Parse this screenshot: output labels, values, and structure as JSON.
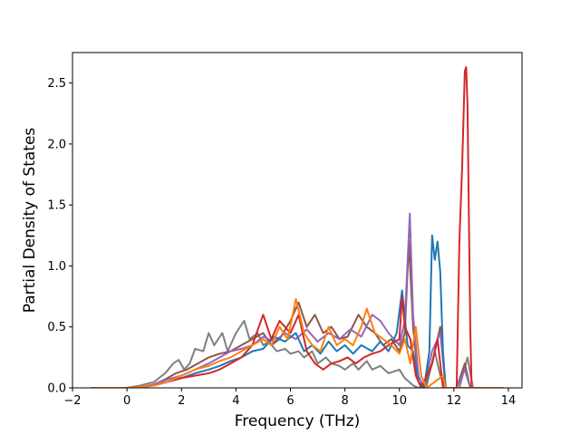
{
  "chart_data": {
    "type": "line",
    "title": "",
    "xlabel": "Frequency (THz)",
    "ylabel": "Partial Density of States",
    "xlim": [
      -2,
      14.5
    ],
    "ylim": [
      0,
      2.75
    ],
    "xticks": [
      -2,
      0,
      2,
      4,
      6,
      8,
      10,
      12,
      14
    ],
    "yticks": [
      0.0,
      0.5,
      1.0,
      1.5,
      2.0,
      2.5
    ],
    "xtick_labels": [
      "−2",
      "0",
      "2",
      "4",
      "6",
      "8",
      "10",
      "12",
      "14"
    ],
    "ytick_labels": [
      "0.0",
      "0.5",
      "1.0",
      "1.5",
      "2.0",
      "2.5"
    ],
    "grid": false,
    "legend": "none",
    "series": [
      {
        "color": "#7f7f7f",
        "points": [
          [
            -1.3,
            0
          ],
          [
            0,
            0
          ],
          [
            0.5,
            0.02
          ],
          [
            1,
            0.05
          ],
          [
            1.4,
            0.12
          ],
          [
            1.7,
            0.2
          ],
          [
            1.9,
            0.23
          ],
          [
            2.1,
            0.15
          ],
          [
            2.3,
            0.2
          ],
          [
            2.5,
            0.32
          ],
          [
            2.8,
            0.3
          ],
          [
            3,
            0.45
          ],
          [
            3.2,
            0.35
          ],
          [
            3.5,
            0.45
          ],
          [
            3.7,
            0.3
          ],
          [
            4,
            0.45
          ],
          [
            4.3,
            0.55
          ],
          [
            4.5,
            0.4
          ],
          [
            4.8,
            0.45
          ],
          [
            5,
            0.35
          ],
          [
            5.2,
            0.38
          ],
          [
            5.5,
            0.3
          ],
          [
            5.8,
            0.32
          ],
          [
            6,
            0.28
          ],
          [
            6.3,
            0.3
          ],
          [
            6.5,
            0.25
          ],
          [
            6.8,
            0.3
          ],
          [
            7,
            0.2
          ],
          [
            7.3,
            0.25
          ],
          [
            7.5,
            0.2
          ],
          [
            7.8,
            0.18
          ],
          [
            8,
            0.15
          ],
          [
            8.3,
            0.2
          ],
          [
            8.5,
            0.15
          ],
          [
            8.8,
            0.22
          ],
          [
            9,
            0.15
          ],
          [
            9.3,
            0.18
          ],
          [
            9.6,
            0.12
          ],
          [
            10,
            0.15
          ],
          [
            10.2,
            0.08
          ],
          [
            10.5,
            0.02
          ],
          [
            10.7,
            0
          ],
          [
            11,
            0.02
          ],
          [
            11.3,
            0.3
          ],
          [
            11.5,
            0.1
          ],
          [
            11.7,
            0
          ],
          [
            12.2,
            0
          ],
          [
            12.5,
            0.25
          ],
          [
            12.7,
            0
          ],
          [
            13.8,
            0
          ]
        ]
      },
      {
        "color": "#8c564b",
        "points": [
          [
            -1.3,
            0
          ],
          [
            0,
            0
          ],
          [
            0.6,
            0.01
          ],
          [
            1,
            0.03
          ],
          [
            1.4,
            0.07
          ],
          [
            1.8,
            0.12
          ],
          [
            2.2,
            0.15
          ],
          [
            2.6,
            0.2
          ],
          [
            3,
            0.25
          ],
          [
            3.4,
            0.28
          ],
          [
            3.8,
            0.3
          ],
          [
            4.2,
            0.35
          ],
          [
            4.6,
            0.4
          ],
          [
            5,
            0.45
          ],
          [
            5.3,
            0.35
          ],
          [
            5.6,
            0.4
          ],
          [
            6,
            0.55
          ],
          [
            6.3,
            0.7
          ],
          [
            6.6,
            0.5
          ],
          [
            6.9,
            0.6
          ],
          [
            7.2,
            0.45
          ],
          [
            7.5,
            0.5
          ],
          [
            7.8,
            0.4
          ],
          [
            8.1,
            0.42
          ],
          [
            8.5,
            0.6
          ],
          [
            8.8,
            0.5
          ],
          [
            9.1,
            0.45
          ],
          [
            9.4,
            0.35
          ],
          [
            9.7,
            0.4
          ],
          [
            10,
            0.3
          ],
          [
            10.2,
            0.45
          ],
          [
            10.35,
            1.2
          ],
          [
            10.5,
            0.5
          ],
          [
            10.7,
            0.05
          ],
          [
            10.9,
            0
          ],
          [
            11.2,
            0.2
          ],
          [
            11.5,
            0.5
          ],
          [
            11.7,
            0
          ],
          [
            12.1,
            0
          ],
          [
            12.4,
            0.2
          ],
          [
            12.6,
            0
          ],
          [
            13.8,
            0
          ]
        ]
      },
      {
        "color": "#9467bd",
        "points": [
          [
            -1.3,
            0
          ],
          [
            0,
            0
          ],
          [
            0.6,
            0.01
          ],
          [
            1,
            0.03
          ],
          [
            1.5,
            0.07
          ],
          [
            2,
            0.1
          ],
          [
            2.5,
            0.15
          ],
          [
            3,
            0.2
          ],
          [
            3.4,
            0.25
          ],
          [
            3.8,
            0.3
          ],
          [
            4.2,
            0.32
          ],
          [
            4.6,
            0.35
          ],
          [
            5,
            0.42
          ],
          [
            5.4,
            0.38
          ],
          [
            5.8,
            0.45
          ],
          [
            6.2,
            0.4
          ],
          [
            6.6,
            0.48
          ],
          [
            7,
            0.38
          ],
          [
            7.4,
            0.45
          ],
          [
            7.8,
            0.4
          ],
          [
            8.2,
            0.48
          ],
          [
            8.6,
            0.42
          ],
          [
            9,
            0.6
          ],
          [
            9.3,
            0.55
          ],
          [
            9.6,
            0.45
          ],
          [
            10,
            0.35
          ],
          [
            10.2,
            0.55
          ],
          [
            10.38,
            1.43
          ],
          [
            10.5,
            0.6
          ],
          [
            10.7,
            0.1
          ],
          [
            10.9,
            0
          ],
          [
            11.2,
            0.3
          ],
          [
            11.5,
            0.45
          ],
          [
            11.7,
            0
          ],
          [
            12.1,
            0
          ],
          [
            12.4,
            0.15
          ],
          [
            12.6,
            0
          ],
          [
            13.8,
            0
          ]
        ]
      },
      {
        "color": "#1f77b4",
        "points": [
          [
            -1.3,
            0
          ],
          [
            0,
            0
          ],
          [
            0.6,
            0.01
          ],
          [
            1,
            0.02
          ],
          [
            1.5,
            0.05
          ],
          [
            2,
            0.08
          ],
          [
            2.5,
            0.12
          ],
          [
            3,
            0.15
          ],
          [
            3.4,
            0.18
          ],
          [
            3.8,
            0.22
          ],
          [
            4.2,
            0.25
          ],
          [
            4.6,
            0.3
          ],
          [
            5,
            0.32
          ],
          [
            5.4,
            0.42
          ],
          [
            5.8,
            0.38
          ],
          [
            6.2,
            0.45
          ],
          [
            6.5,
            0.3
          ],
          [
            6.8,
            0.35
          ],
          [
            7.1,
            0.28
          ],
          [
            7.4,
            0.38
          ],
          [
            7.7,
            0.3
          ],
          [
            8,
            0.35
          ],
          [
            8.3,
            0.28
          ],
          [
            8.6,
            0.35
          ],
          [
            9,
            0.3
          ],
          [
            9.3,
            0.38
          ],
          [
            9.6,
            0.3
          ],
          [
            9.9,
            0.45
          ],
          [
            10.1,
            0.8
          ],
          [
            10.3,
            0.35
          ],
          [
            10.5,
            0.3
          ],
          [
            10.7,
            0.05
          ],
          [
            10.9,
            0
          ],
          [
            11.1,
            0.3
          ],
          [
            11.2,
            1.25
          ],
          [
            11.3,
            1.05
          ],
          [
            11.4,
            1.2
          ],
          [
            11.5,
            0.95
          ],
          [
            11.6,
            0.3
          ],
          [
            11.7,
            0
          ],
          [
            13.8,
            0
          ]
        ]
      },
      {
        "color": "#d62728",
        "points": [
          [
            -1.3,
            0
          ],
          [
            0,
            0
          ],
          [
            0.6,
            0.01
          ],
          [
            1,
            0.02
          ],
          [
            1.5,
            0.05
          ],
          [
            2,
            0.08
          ],
          [
            2.5,
            0.1
          ],
          [
            3,
            0.12
          ],
          [
            3.4,
            0.15
          ],
          [
            3.8,
            0.2
          ],
          [
            4.2,
            0.25
          ],
          [
            4.6,
            0.35
          ],
          [
            5,
            0.6
          ],
          [
            5.3,
            0.4
          ],
          [
            5.6,
            0.55
          ],
          [
            6,
            0.45
          ],
          [
            6.3,
            0.6
          ],
          [
            6.6,
            0.3
          ],
          [
            6.9,
            0.2
          ],
          [
            7.2,
            0.15
          ],
          [
            7.5,
            0.2
          ],
          [
            7.8,
            0.22
          ],
          [
            8.1,
            0.25
          ],
          [
            8.4,
            0.2
          ],
          [
            8.7,
            0.25
          ],
          [
            9,
            0.28
          ],
          [
            9.3,
            0.3
          ],
          [
            9.6,
            0.35
          ],
          [
            10,
            0.4
          ],
          [
            10.1,
            0.75
          ],
          [
            10.2,
            0.5
          ],
          [
            10.4,
            0.4
          ],
          [
            10.6,
            0.1
          ],
          [
            10.8,
            0
          ],
          [
            11.2,
            0.2
          ],
          [
            11.4,
            0.4
          ],
          [
            11.6,
            0
          ],
          [
            12.1,
            0
          ],
          [
            12.2,
            1.2
          ],
          [
            12.3,
            1.8
          ],
          [
            12.4,
            2.6
          ],
          [
            12.45,
            2.63
          ],
          [
            12.5,
            2.3
          ],
          [
            12.6,
            0.5
          ],
          [
            12.65,
            0
          ],
          [
            13.8,
            0
          ]
        ]
      },
      {
        "color": "#ff7f0e",
        "points": [
          [
            -1.3,
            0
          ],
          [
            0,
            0
          ],
          [
            0.6,
            0.01
          ],
          [
            1,
            0.02
          ],
          [
            1.5,
            0.05
          ],
          [
            2,
            0.1
          ],
          [
            2.5,
            0.15
          ],
          [
            3,
            0.18
          ],
          [
            3.4,
            0.22
          ],
          [
            3.8,
            0.25
          ],
          [
            4.2,
            0.3
          ],
          [
            4.6,
            0.35
          ],
          [
            5,
            0.4
          ],
          [
            5.3,
            0.35
          ],
          [
            5.6,
            0.5
          ],
          [
            5.9,
            0.4
          ],
          [
            6.2,
            0.73
          ],
          [
            6.5,
            0.45
          ],
          [
            6.8,
            0.35
          ],
          [
            7.1,
            0.3
          ],
          [
            7.4,
            0.5
          ],
          [
            7.7,
            0.35
          ],
          [
            8,
            0.4
          ],
          [
            8.3,
            0.35
          ],
          [
            8.6,
            0.5
          ],
          [
            8.8,
            0.65
          ],
          [
            9.1,
            0.45
          ],
          [
            9.4,
            0.4
          ],
          [
            9.7,
            0.35
          ],
          [
            10,
            0.28
          ],
          [
            10.2,
            0.4
          ],
          [
            10.4,
            0.2
          ],
          [
            10.6,
            0.5
          ],
          [
            10.8,
            0.1
          ],
          [
            11,
            0
          ],
          [
            11.3,
            0.05
          ],
          [
            11.6,
            0.1
          ],
          [
            11.7,
            0
          ],
          [
            13.8,
            0
          ]
        ]
      }
    ]
  }
}
